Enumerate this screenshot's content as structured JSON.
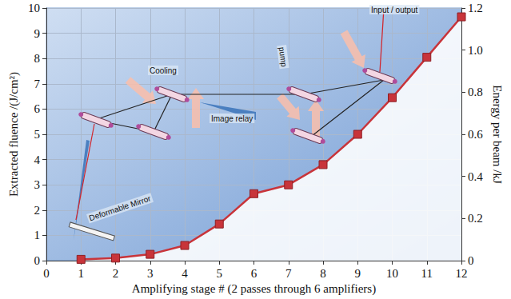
{
  "chart_data": {
    "type": "line",
    "xlabel": "Amplifying stage # (2 passes through 6 amplifiers)",
    "ylabel": "Extracted fluence /(J/cm²)",
    "y2label": "Energy per beam /kJ",
    "x": [
      1,
      2,
      3,
      4,
      5,
      6,
      7,
      8,
      9,
      10,
      11,
      12
    ],
    "values": [
      0.05,
      0.1,
      0.25,
      0.6,
      1.45,
      2.65,
      3.0,
      3.8,
      5.0,
      6.45,
      8.05,
      9.65
    ],
    "color": "#c8343a",
    "marker": "square",
    "line_style": "solid",
    "xlim": [
      0,
      12
    ],
    "xticks": [
      0,
      1,
      2,
      3,
      4,
      5,
      6,
      7,
      8,
      9,
      10,
      11,
      12
    ],
    "ylim": [
      0,
      10
    ],
    "yticks": [
      0,
      1,
      2,
      3,
      4,
      5,
      6,
      7,
      8,
      9,
      10
    ],
    "y2lim": [
      0,
      1.2
    ],
    "y2ticks": [
      0,
      0.2,
      0.4,
      0.6,
      0.8,
      {
        "value": 1,
        "label": "1.0"
      },
      1.2
    ],
    "grid": true,
    "annotations": [
      "Cooling",
      "Image relay",
      "pump",
      "Input / output",
      "Deformable Mirror"
    ]
  }
}
